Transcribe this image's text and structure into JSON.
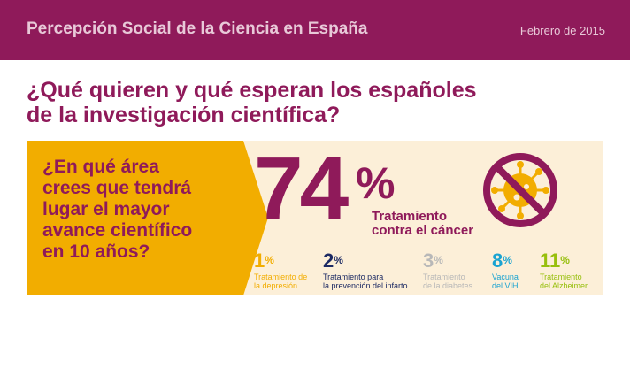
{
  "header": {
    "title": "Percepción Social de la Ciencia en España",
    "date": "Febrero de 2015"
  },
  "headline": {
    "line1": "¿Qué quieren y qué esperan los españoles",
    "line2": "de la investigación científica?"
  },
  "question": {
    "lines": [
      "¿En qué área",
      "crees que tendrá",
      "lugar el mayor",
      "avance científico",
      "en 10 años?"
    ]
  },
  "main_stat": {
    "value": "74",
    "unit": "%",
    "label_line1": "Tratamiento",
    "label_line2": "contra el cáncer",
    "icon": "no-virus-icon"
  },
  "stats": [
    {
      "value": "1",
      "unit": "%",
      "label_line1": "Tratamiento de",
      "label_line2": "la depresión"
    },
    {
      "value": "2",
      "unit": "%",
      "label_line1": "Tratamiento para",
      "label_line2": "la prevención del infarto"
    },
    {
      "value": "3",
      "unit": "%",
      "label_line1": "Tratamiento",
      "label_line2": "de la diabetes"
    },
    {
      "value": "8",
      "unit": "%",
      "label_line1": "Vacuna",
      "label_line2": "del VIH"
    },
    {
      "value": "11",
      "unit": "%",
      "label_line1": "Tratamiento",
      "label_line2": "del Alzheimer"
    }
  ],
  "colors": {
    "brand_purple": "#8f1a5a",
    "header_text": "#e8c9d8",
    "orange": "#f2ad00",
    "panel_bg": "#fcefd8",
    "navy": "#1c2a63",
    "grey": "#b8b8b8",
    "blue": "#1aa3d1",
    "green": "#97bf0d"
  }
}
